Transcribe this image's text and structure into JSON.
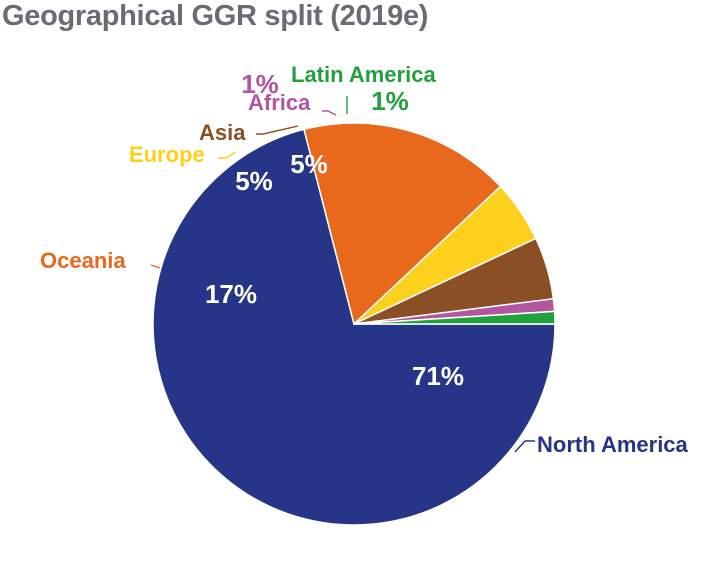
{
  "chart_data": {
    "type": "pie",
    "title": "Geographical GGR split (2019e)",
    "slices": [
      {
        "label": "North America",
        "value": 71,
        "value_label": "71%",
        "color": "#263588"
      },
      {
        "label": "Oceania",
        "value": 17,
        "value_label": "17%",
        "color": "#e8681c"
      },
      {
        "label": "Europe",
        "value": 5,
        "value_label": "5%",
        "color": "#fcd01c"
      },
      {
        "label": "Asia",
        "value": 5,
        "value_label": "5%",
        "color": "#8a4f24"
      },
      {
        "label": "Africa",
        "value": 1,
        "value_label": "1%",
        "color": "#b2569f"
      },
      {
        "label": "Latin America",
        "value": 1,
        "value_label": "1%",
        "color": "#22a03c"
      }
    ]
  }
}
